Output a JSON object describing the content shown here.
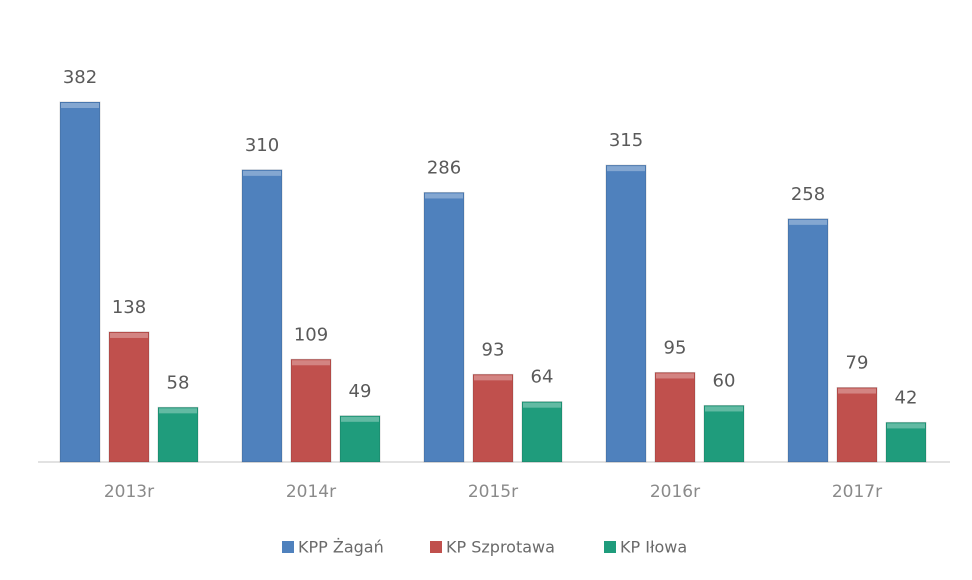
{
  "chart_data": {
    "type": "bar",
    "categories": [
      "2013r",
      "2014r",
      "2015r",
      "2016r",
      "2017r"
    ],
    "series": [
      {
        "name": "KPP Żagań",
        "color": "#4f81bd",
        "values": [
          382,
          310,
          286,
          315,
          258
        ]
      },
      {
        "name": "KP Szprotawa",
        "color": "#c0504d",
        "values": [
          138,
          109,
          93,
          95,
          79
        ]
      },
      {
        "name": "KP Iłowa",
        "color": "#1f9c7c",
        "values": [
          58,
          49,
          64,
          60,
          42
        ]
      }
    ],
    "legend": "bottom"
  }
}
